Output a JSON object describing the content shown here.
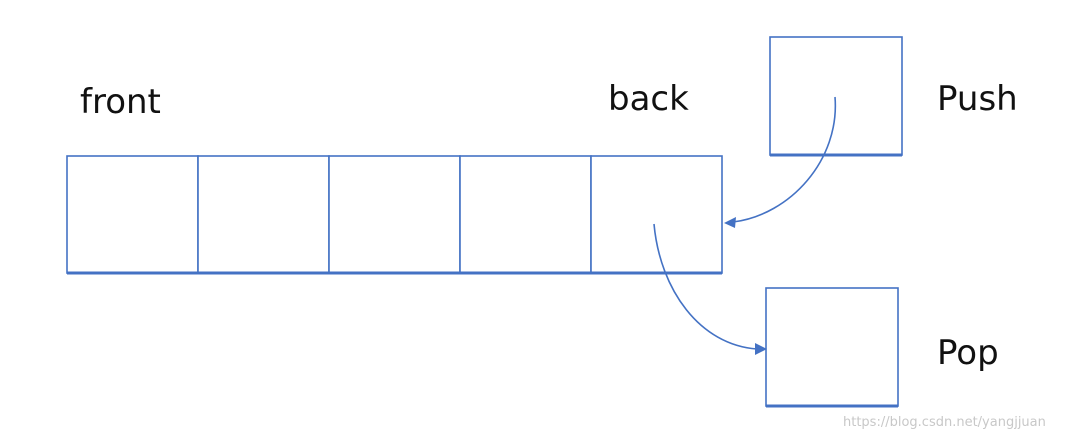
{
  "labels": {
    "front": "front",
    "back": "back",
    "push": "Push",
    "pop": "Pop"
  },
  "queue": {
    "cell_count": 5
  },
  "watermark": "https://blog.csdn.net/yangjjuan",
  "colors": {
    "line": "#4472c4",
    "text": "#111111",
    "watermark": "#c8c8c8"
  }
}
